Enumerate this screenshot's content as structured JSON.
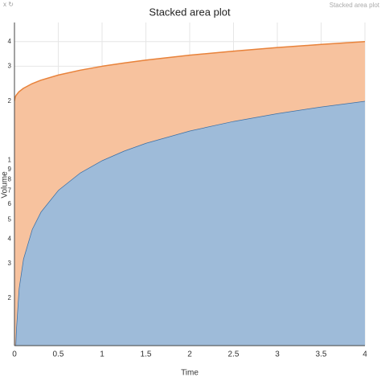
{
  "tab_label": "Stacked area plot",
  "chart_data": {
    "type": "stacked-area",
    "title": "Stacked area plot",
    "x_label": "Time",
    "y_label": "Volume",
    "x": [
      0,
      0.01,
      0.02,
      0.05,
      0.1,
      0.2,
      0.3,
      0.5,
      0.75,
      1,
      1.25,
      1.5,
      2,
      2.5,
      3,
      3.5,
      4
    ],
    "series": [
      {
        "color": "#3a6fa6",
        "fill": "#9ebbd9",
        "values": [
          0,
          0.1,
          0.141,
          0.224,
          0.316,
          0.447,
          0.548,
          0.707,
          0.866,
          1,
          1.118,
          1.225,
          1.414,
          1.581,
          1.732,
          1.871,
          2
        ]
      },
      {
        "color": "#e8823a",
        "fill": "#f7c29e",
        "values": [
          2,
          2,
          2,
          2,
          2,
          2,
          2,
          2,
          2,
          2,
          2,
          2,
          2,
          2,
          2,
          2,
          2
        ]
      }
    ],
    "xlim": [
      0,
      4
    ],
    "xticks": [
      0,
      0.5,
      1,
      1.5,
      2,
      2.5,
      3,
      3.5,
      4
    ],
    "ylim": [
      0.115,
      5
    ],
    "log_y": true,
    "grid": true,
    "yticks": [
      {
        "value": 0.2,
        "label": "2"
      },
      {
        "value": 0.3,
        "label": "3"
      },
      {
        "value": 0.4,
        "label": "4"
      },
      {
        "value": 0.5,
        "label": "5"
      },
      {
        "value": 0.6,
        "label": "6"
      },
      {
        "value": 0.7,
        "label": "7"
      },
      {
        "value": 0.8,
        "label": "8"
      },
      {
        "value": 0.9,
        "label": "9"
      },
      1,
      2,
      3,
      4
    ]
  }
}
